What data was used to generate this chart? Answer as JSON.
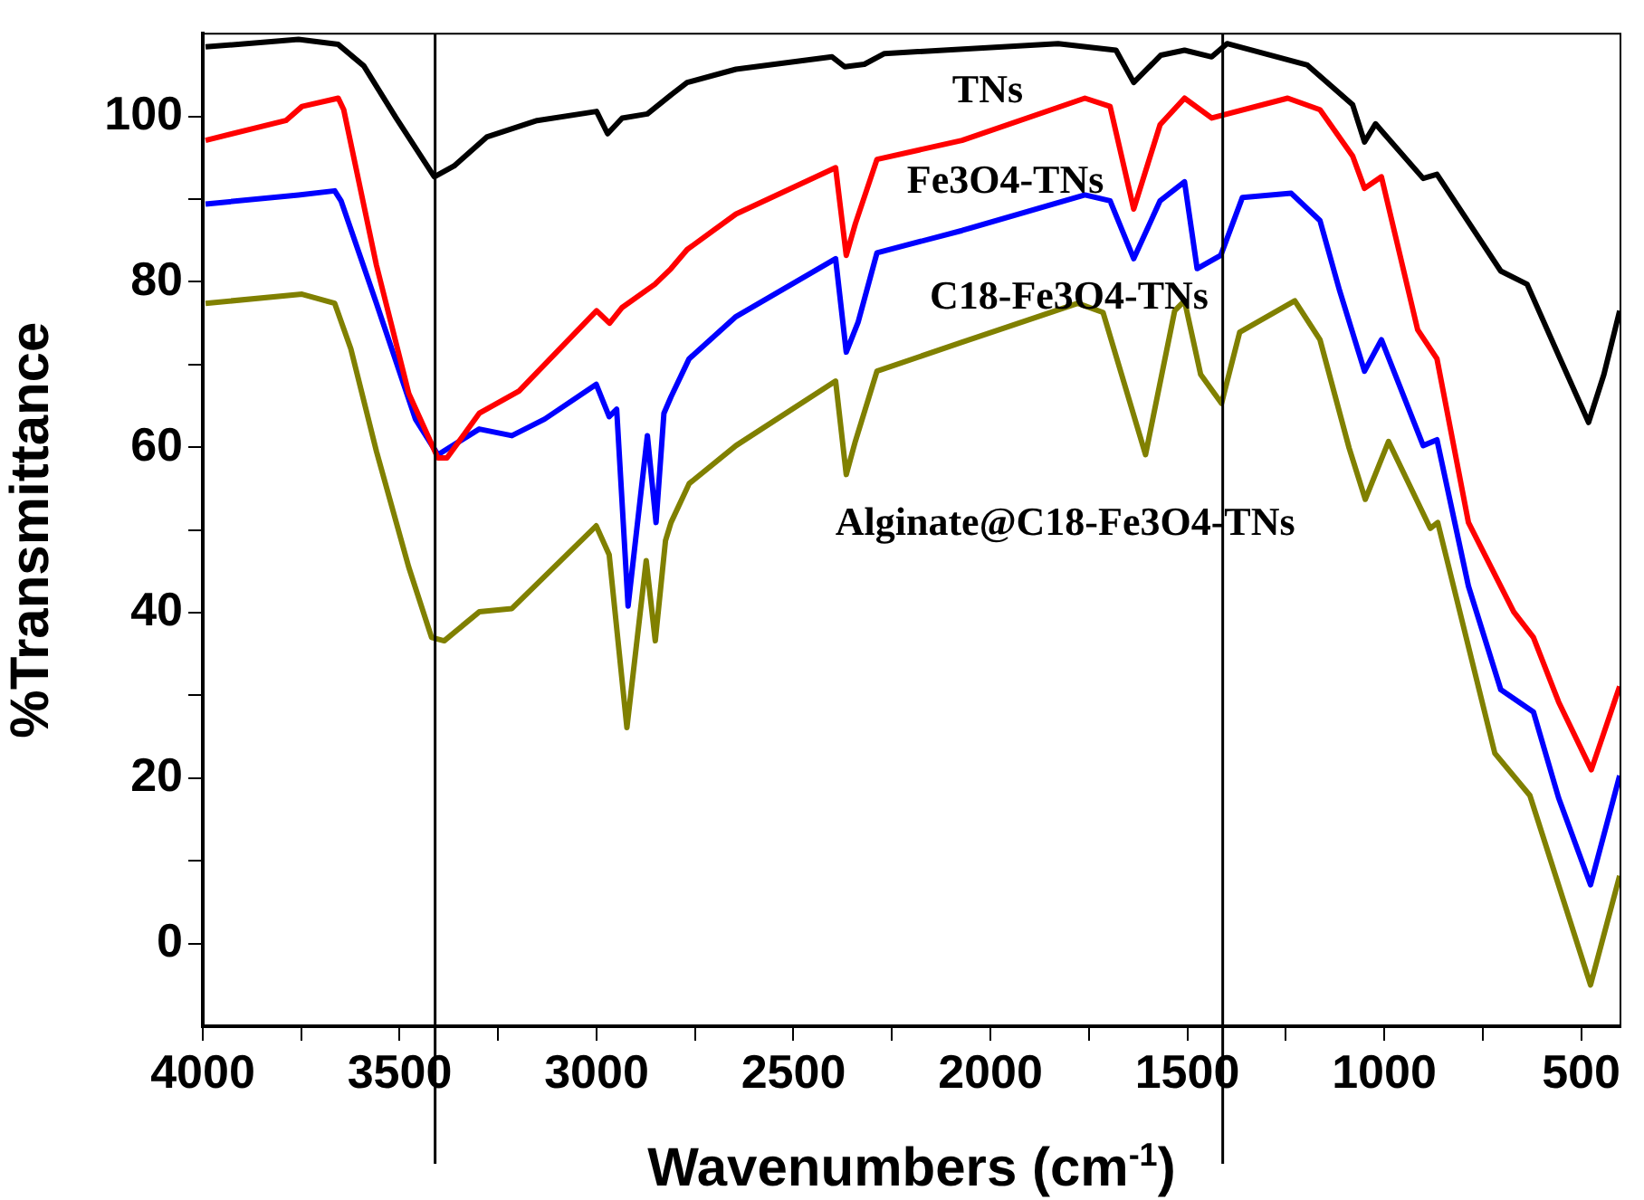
{
  "chart_data": {
    "type": "line",
    "xlabel": "Wavenumbers (cm$^{-1}$)",
    "ylabel": "%Transmittance",
    "xlim": [
      4000,
      400
    ],
    "xticks": [
      4000,
      {
        "value": 3750,
        "label": null
      },
      3500,
      {
        "value": 3250,
        "label": null
      },
      3000,
      {
        "value": 2750,
        "label": null
      },
      2500,
      {
        "value": 2250,
        "label": null
      },
      2000,
      {
        "value": 1750,
        "label": null
      },
      1500,
      {
        "value": 1250,
        "label": null
      },
      1000,
      {
        "value": 750,
        "label": null
      },
      500
    ],
    "ylim": [
      -10,
      110
    ],
    "yticks": [
      0,
      {
        "value": 10,
        "label": null
      },
      20,
      {
        "value": 30,
        "label": null
      },
      40,
      {
        "value": 50,
        "label": null
      },
      60,
      {
        "value": 70,
        "label": null
      },
      80,
      {
        "value": 90,
        "label": null
      },
      100
    ],
    "grid": false,
    "legend": false,
    "marker": "none",
    "line_style": "solid",
    "ref_lines": [
      {
        "axis": "x",
        "value": 3410,
        "color": "#000000"
      },
      {
        "axis": "x",
        "value": 1410,
        "color": "#000000"
      }
    ],
    "series": [
      {
        "name": "TNs",
        "color": "#000000",
        "x": [
          3993,
          3757,
          3656,
          3591,
          3509,
          3412,
          3362,
          3279,
          3151,
          3000,
          2972,
          2935,
          2871,
          2811,
          2770,
          2646,
          2402,
          2370,
          2320,
          2269,
          1828,
          1681,
          1636,
          1567,
          1507,
          1438,
          1399,
          1195,
          1080,
          1050,
          1022,
          901,
          866,
          704,
          637,
          557,
          481,
          442,
          402
        ],
        "values": [
          108.4,
          109.3,
          108.7,
          106.1,
          99.8,
          92.7,
          94.0,
          97.5,
          99.5,
          100.6,
          97.9,
          99.8,
          100.3,
          102.6,
          104.1,
          105.7,
          107.2,
          106.0,
          106.3,
          107.6,
          108.8,
          108.0,
          104.1,
          107.4,
          108.0,
          107.2,
          108.8,
          106.2,
          101.4,
          96.9,
          99.1,
          92.5,
          93.0,
          81.3,
          79.7,
          71.1,
          63.0,
          68.8,
          76.5
        ]
      },
      {
        "name": "Fe3O4-TNs",
        "color": "#ff0000",
        "x": [
          3993,
          3789,
          3748,
          3656,
          3642,
          3559,
          3477,
          3403,
          3380,
          3298,
          3197,
          3000,
          2967,
          2935,
          2852,
          2811,
          2770,
          2646,
          2393,
          2366,
          2343,
          2288,
          2072,
          1760,
          1696,
          1636,
          1569,
          1507,
          1438,
          1245,
          1163,
          1080,
          1050,
          1007,
          915,
          866,
          786,
          671,
          621,
          557,
          474,
          402
        ],
        "values": [
          97.1,
          99.5,
          101.2,
          102.2,
          100.8,
          82.0,
          66.5,
          58.7,
          58.7,
          64.1,
          66.8,
          76.5,
          75.0,
          76.9,
          79.7,
          81.6,
          83.9,
          88.2,
          93.8,
          83.2,
          87.0,
          94.8,
          97.1,
          102.2,
          101.2,
          88.8,
          99.0,
          102.2,
          99.8,
          102.2,
          100.8,
          95.2,
          91.3,
          92.7,
          74.2,
          70.7,
          50.9,
          40.1,
          37.0,
          29.2,
          21.0,
          31.1
        ]
      },
      {
        "name": "C18-Fe3O4-TNs",
        "color": "#0000ff",
        "x": [
          3993,
          3757,
          3665,
          3649,
          3559,
          3460,
          3403,
          3298,
          3215,
          3132,
          3001,
          2968,
          2949,
          2920,
          2871,
          2849,
          2829,
          2811,
          2765,
          2646,
          2393,
          2366,
          2336,
          2288,
          2072,
          1760,
          1696,
          1636,
          1569,
          1507,
          1475,
          1415,
          1360,
          1236,
          1163,
          1113,
          1050,
          1007,
          901,
          866,
          786,
          704,
          621,
          557,
          476,
          402
        ],
        "values": [
          89.4,
          90.5,
          91.0,
          89.8,
          77.4,
          63.4,
          59.1,
          62.2,
          61.4,
          63.4,
          67.6,
          63.7,
          64.6,
          40.8,
          61.4,
          50.9,
          64.1,
          66.1,
          70.7,
          75.8,
          82.8,
          71.5,
          75.1,
          83.5,
          86.2,
          90.5,
          89.8,
          82.8,
          89.8,
          92.1,
          81.6,
          83.2,
          90.2,
          90.7,
          87.4,
          78.9,
          69.2,
          73.0,
          60.2,
          60.9,
          43.2,
          30.7,
          28.0,
          17.6,
          7.1,
          20.3
        ]
      },
      {
        "name": "Alginate@C18-Fe3O4-TNs",
        "color": "#808000",
        "x": [
          3993,
          3748,
          3665,
          3624,
          3559,
          3477,
          3419,
          3387,
          3298,
          3215,
          3001,
          2968,
          2923,
          2874,
          2851,
          2825,
          2811,
          2765,
          2646,
          2393,
          2366,
          2343,
          2288,
          2072,
          1778,
          1714,
          1606,
          1532,
          1507,
          1466,
          1413,
          1367,
          1227,
          1163,
          1089,
          1048,
          989,
          883,
          864,
          719,
          630,
          476,
          402
        ],
        "values": [
          77.4,
          78.5,
          77.4,
          71.9,
          59.5,
          45.5,
          37.0,
          36.6,
          40.1,
          40.5,
          50.5,
          47.0,
          26.1,
          46.3,
          36.6,
          48.7,
          50.9,
          55.6,
          60.2,
          68.0,
          56.7,
          60.7,
          69.2,
          72.7,
          77.4,
          76.3,
          59.1,
          76.5,
          77.7,
          68.8,
          65.3,
          73.9,
          77.7,
          73.0,
          59.9,
          53.7,
          60.7,
          50.2,
          50.9,
          23.0,
          17.9,
          -5.0,
          8.2
        ]
      }
    ]
  }
}
